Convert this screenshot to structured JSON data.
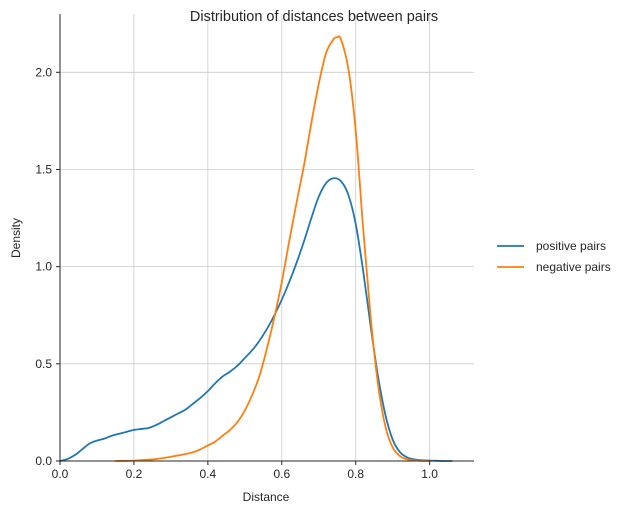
{
  "chart_data": {
    "type": "line",
    "title": "Distribution of distances between pairs",
    "xlabel": "Distance",
    "ylabel": "Density",
    "xlim": [
      0.0,
      1.12
    ],
    "ylim": [
      0.0,
      2.3
    ],
    "xticks": [
      0.0,
      0.2,
      0.4,
      0.6,
      0.8,
      1.0
    ],
    "xtick_labels": [
      "0.0",
      "0.2",
      "0.4",
      "0.6",
      "0.8",
      "1.0"
    ],
    "yticks": [
      0.0,
      0.5,
      1.0,
      1.5,
      2.0
    ],
    "ytick_labels": [
      "0.0",
      "0.5",
      "1.0",
      "1.5",
      "2.0"
    ],
    "grid": true,
    "legend_position": "right",
    "series": [
      {
        "name": "positive pairs",
        "color": "#1f77b4",
        "x": [
          0.0,
          0.02,
          0.04,
          0.06,
          0.08,
          0.1,
          0.12,
          0.14,
          0.16,
          0.18,
          0.2,
          0.22,
          0.24,
          0.26,
          0.28,
          0.3,
          0.32,
          0.34,
          0.36,
          0.38,
          0.4,
          0.42,
          0.44,
          0.46,
          0.48,
          0.5,
          0.52,
          0.54,
          0.56,
          0.58,
          0.6,
          0.62,
          0.64,
          0.66,
          0.68,
          0.7,
          0.72,
          0.74,
          0.76,
          0.78,
          0.8,
          0.82,
          0.84,
          0.86,
          0.88,
          0.9,
          0.92,
          0.94,
          0.96,
          0.98,
          1.0,
          1.02,
          1.04,
          1.06
        ],
        "y": [
          0.0,
          0.01,
          0.03,
          0.06,
          0.09,
          0.105,
          0.115,
          0.13,
          0.14,
          0.15,
          0.16,
          0.165,
          0.17,
          0.185,
          0.205,
          0.225,
          0.245,
          0.265,
          0.295,
          0.325,
          0.36,
          0.4,
          0.435,
          0.46,
          0.49,
          0.53,
          0.57,
          0.62,
          0.68,
          0.75,
          0.83,
          0.92,
          1.02,
          1.13,
          1.25,
          1.36,
          1.43,
          1.455,
          1.44,
          1.37,
          1.22,
          0.98,
          0.7,
          0.44,
          0.24,
          0.11,
          0.045,
          0.018,
          0.008,
          0.004,
          0.002,
          0.001,
          0.0,
          0.0
        ]
      },
      {
        "name": "negative pairs",
        "color": "#ff7f0e",
        "x": [
          0.15,
          0.2,
          0.25,
          0.28,
          0.3,
          0.33,
          0.36,
          0.38,
          0.4,
          0.42,
          0.44,
          0.46,
          0.48,
          0.5,
          0.52,
          0.54,
          0.56,
          0.58,
          0.6,
          0.62,
          0.64,
          0.66,
          0.68,
          0.7,
          0.72,
          0.74,
          0.75,
          0.76,
          0.78,
          0.8,
          0.82,
          0.84,
          0.86,
          0.88,
          0.9,
          0.92,
          0.94,
          0.96,
          1.0
        ],
        "y": [
          0.0,
          0.002,
          0.008,
          0.015,
          0.022,
          0.032,
          0.045,
          0.06,
          0.08,
          0.1,
          0.13,
          0.16,
          0.2,
          0.26,
          0.34,
          0.44,
          0.58,
          0.74,
          0.92,
          1.13,
          1.33,
          1.52,
          1.74,
          1.94,
          2.1,
          2.17,
          2.18,
          2.17,
          2.02,
          1.7,
          1.2,
          0.75,
          0.4,
          0.18,
          0.07,
          0.025,
          0.008,
          0.003,
          0.0
        ]
      }
    ]
  }
}
